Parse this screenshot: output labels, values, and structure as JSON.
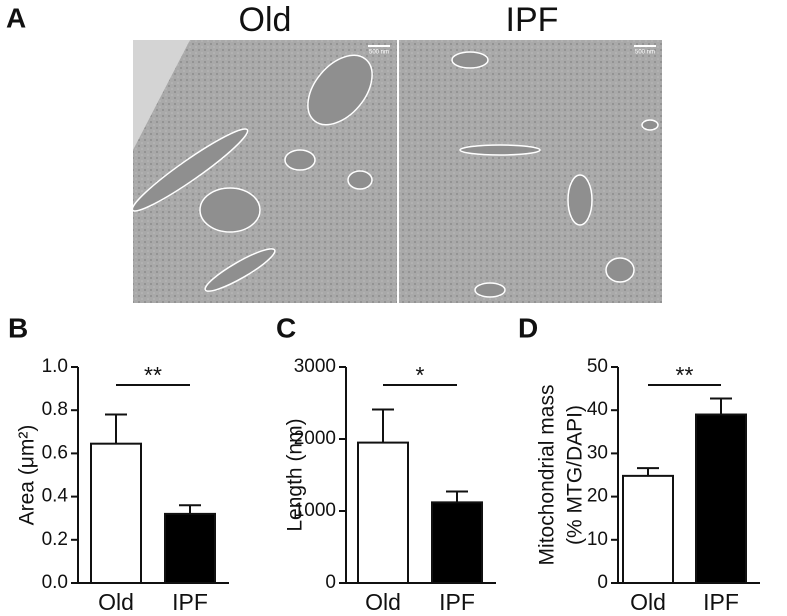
{
  "figure_a": {
    "panel": "A",
    "images": [
      {
        "title": "Old",
        "scale_bar": "500 nm"
      },
      {
        "title": "IPF",
        "scale_bar": "500 nm"
      }
    ]
  },
  "chart_data": [
    {
      "type": "bar",
      "panel": "B",
      "ylabel": [
        "Area (μm²)"
      ],
      "categories": [
        "Old",
        "IPF"
      ],
      "values": [
        0.645,
        0.32
      ],
      "errors": [
        0.135,
        0.04
      ],
      "colors": [
        "#ffffff",
        "#000000"
      ],
      "ylim": [
        0,
        1
      ],
      "yticks": [
        {
          "value": 0,
          "label": "0.0"
        },
        0.2,
        0.4,
        0.6,
        0.8,
        {
          "value": 1,
          "label": "1.0"
        }
      ],
      "significance": "**"
    },
    {
      "type": "bar",
      "panel": "C",
      "ylabel": [
        "Length (nm)"
      ],
      "categories": [
        "Old",
        "IPF"
      ],
      "values": [
        1950,
        1120
      ],
      "errors": [
        460,
        150
      ],
      "colors": [
        "#ffffff",
        "#000000"
      ],
      "ylim": [
        0,
        3000
      ],
      "yticks": [
        0,
        1000,
        2000,
        3000
      ],
      "significance": "*"
    },
    {
      "type": "bar",
      "panel": "D",
      "ylabel": [
        "Mitochondrial mass",
        "(% MTG/DAPI)"
      ],
      "categories": [
        "Old",
        "IPF"
      ],
      "values": [
        24.8,
        39
      ],
      "errors": [
        1.8,
        3.7
      ],
      "colors": [
        "#ffffff",
        "#000000"
      ],
      "ylim": [
        0,
        50
      ],
      "yticks": [
        0,
        10,
        20,
        30,
        40,
        50
      ],
      "significance": "**"
    }
  ]
}
